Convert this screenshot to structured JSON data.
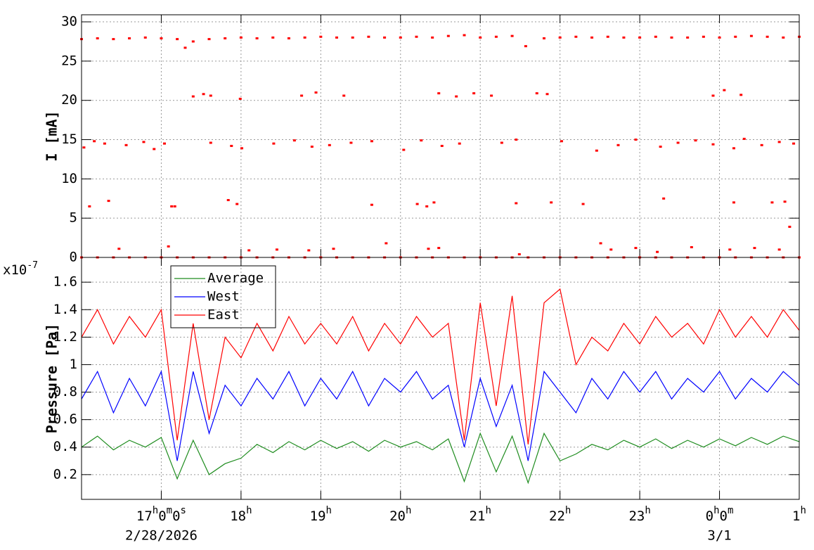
{
  "chart_data": [
    {
      "type": "scatter",
      "ylabel": "I [mA]",
      "color": "#ff0000",
      "ylim": [
        0,
        30.9
      ],
      "yticks": [
        0,
        5,
        10,
        15,
        20,
        25,
        30
      ],
      "grid": true,
      "series": [
        {
          "x": [
            16,
            16.2,
            16.4,
            16.6,
            16.8,
            17,
            17.2,
            17.4,
            17.6,
            17.8,
            18,
            18.2,
            18.4,
            18.6,
            18.8,
            19,
            19.2,
            19.4,
            19.6,
            19.8,
            20,
            20.2,
            20.4,
            20.6,
            20.8,
            21,
            21.2,
            21.4,
            21.8,
            22,
            22.2,
            22.4,
            22.6,
            22.8,
            23,
            23.2,
            23.4,
            23.6,
            23.8,
            24,
            24.2,
            24.4,
            24.6,
            24.8,
            25
          ],
          "values": [
            27.8,
            27.9,
            27.8,
            27.9,
            28.0,
            27.9,
            27.8,
            27.5,
            27.8,
            27.9,
            28.0,
            27.9,
            28.0,
            27.9,
            28.0,
            28.1,
            28.0,
            28.0,
            28.1,
            28.0,
            28.0,
            28.1,
            28.0,
            28.2,
            28.3,
            28.0,
            28.1,
            28.2,
            27.9,
            28.0,
            28.1,
            28.0,
            28.1,
            28.0,
            28.0,
            28.1,
            28.0,
            28.0,
            28.1,
            28.0,
            28.1,
            28.2,
            28.1,
            28.0,
            28.1
          ]
        },
        {
          "x": [
            16,
            16.2,
            16.4,
            16.6,
            16.8,
            17,
            17.2,
            17.4,
            17.6,
            17.8,
            18,
            18.2,
            18.4,
            18.6,
            18.8,
            19,
            19.2,
            19.4,
            19.6,
            19.8,
            20,
            20.2,
            20.4,
            20.6,
            20.8,
            21,
            21.2,
            21.4,
            21.6,
            21.8,
            22,
            22.2,
            22.4,
            22.6,
            22.8,
            23,
            23.2,
            23.4,
            23.6,
            23.8,
            24,
            24.2,
            24.4,
            24.6,
            24.8,
            25
          ],
          "values": [
            0,
            0,
            0,
            0,
            0,
            0,
            0,
            0,
            0,
            0,
            0,
            0,
            0,
            0,
            0,
            0,
            0,
            0,
            0,
            0,
            0,
            0,
            0,
            0,
            0,
            0,
            0,
            0,
            0,
            0,
            0,
            0,
            0,
            0,
            0,
            0,
            0,
            0,
            0,
            0,
            0,
            0,
            0,
            0,
            0,
            0
          ]
        },
        {
          "x": [
            16.03,
            16.16,
            16.29,
            16.56,
            16.78,
            16.91,
            17.04,
            17.62,
            17.88,
            18.01,
            18.41,
            18.67,
            18.89,
            19.11,
            19.38,
            19.64,
            20.04,
            20.26,
            20.52,
            20.74,
            21.27,
            21.45,
            22.02,
            22.46,
            22.73,
            22.95,
            23.26,
            23.48,
            23.7,
            23.92,
            24.18,
            24.31,
            24.53,
            24.75,
            24.93
          ],
          "values": [
            14,
            14.8,
            14.5,
            14.3,
            14.7,
            13.8,
            14.5,
            14.6,
            14.2,
            13.9,
            14.5,
            14.9,
            14.1,
            14.3,
            14.6,
            14.8,
            13.7,
            14.9,
            14.2,
            14.5,
            14.6,
            15.0,
            14.8,
            13.6,
            14.3,
            15.0,
            14.1,
            14.6,
            14.9,
            14.4,
            13.9,
            15.1,
            14.3,
            14.7,
            14.5
          ]
        },
        {
          "x": [
            17.4,
            17.53,
            17.62,
            17.99,
            18.76,
            18.94,
            19.29,
            20.48,
            20.7,
            20.92,
            21.14,
            21.71,
            21.84,
            23.92,
            24.06,
            24.27
          ],
          "values": [
            20.5,
            20.8,
            20.6,
            20.2,
            20.6,
            21.0,
            20.6,
            20.9,
            20.5,
            20.9,
            20.6,
            20.9,
            20.8,
            20.6,
            21.3,
            20.7
          ]
        },
        {
          "x": [
            16.1,
            16.34,
            17.13,
            17.17,
            17.84,
            17.95,
            19.64,
            20.21,
            20.33,
            20.42,
            21.45,
            21.89,
            22.29,
            23.3,
            24.18,
            24.66,
            24.82,
            24.88
          ],
          "values": [
            6.5,
            7.2,
            6.5,
            6.5,
            7.3,
            6.8,
            6.7,
            6.8,
            6.5,
            7.0,
            6.9,
            7.0,
            6.8,
            7.5,
            7.0,
            7.0,
            7.1,
            3.9
          ]
        },
        {
          "x": [
            16.47,
            17.09,
            18.1,
            18.45,
            18.85,
            19.16,
            19.82,
            20.35,
            20.48,
            21.49,
            22.51,
            22.64,
            22.95,
            23.22,
            23.65,
            24.13,
            24.44,
            24.75
          ],
          "values": [
            1.1,
            1.4,
            0.9,
            1.0,
            0.9,
            1.1,
            1.8,
            1.1,
            1.2,
            0.4,
            1.8,
            1.0,
            1.2,
            0.7,
            1.3,
            1.0,
            1.2,
            1.0
          ]
        },
        {
          "x": [
            17.3,
            21.57
          ],
          "values": [
            26.7,
            26.9
          ]
        }
      ]
    },
    {
      "type": "line",
      "ylabel": "Pressure [Pa]",
      "axis_multiplier": {
        "base": "x10",
        "exponent": "-7"
      },
      "ylim": [
        0.02,
        1.78
      ],
      "yticks": [
        0.2,
        0.4,
        0.6,
        0.8,
        1,
        1.2,
        1.4,
        1.6
      ],
      "grid": true,
      "legend": "upper left",
      "xlim": [
        16,
        25
      ],
      "xticks": [
        {
          "value": 17,
          "label": "17h0m0s"
        },
        {
          "value": 18,
          "label": "18h"
        },
        {
          "value": 19,
          "label": "19h"
        },
        {
          "value": 20,
          "label": "20h"
        },
        {
          "value": 21,
          "label": "21h"
        },
        {
          "value": 22,
          "label": "22h"
        },
        {
          "value": 23,
          "label": "23h"
        },
        {
          "value": 24,
          "label": "0h0m"
        },
        {
          "value": 25,
          "label": "1h"
        }
      ],
      "date_labels": [
        {
          "value": 17,
          "label": "2/28/2026"
        },
        {
          "value": 24,
          "label": "3/1"
        }
      ],
      "x": [
        16,
        16.2,
        16.4,
        16.6,
        16.8,
        17,
        17.2,
        17.4,
        17.6,
        17.8,
        18,
        18.2,
        18.4,
        18.6,
        18.8,
        19,
        19.2,
        19.4,
        19.6,
        19.8,
        20,
        20.2,
        20.4,
        20.6,
        20.8,
        21,
        21.2,
        21.4,
        21.6,
        21.8,
        22,
        22.2,
        22.4,
        22.6,
        22.8,
        23,
        23.2,
        23.4,
        23.6,
        23.8,
        24,
        24.2,
        24.4,
        24.6,
        24.8,
        25
      ],
      "series": [
        {
          "name": "Average",
          "color": "#1e8c1e",
          "values": [
            0.4,
            0.48,
            0.38,
            0.45,
            0.4,
            0.47,
            0.17,
            0.45,
            0.2,
            0.28,
            0.32,
            0.42,
            0.36,
            0.44,
            0.38,
            0.45,
            0.39,
            0.44,
            0.37,
            0.45,
            0.4,
            0.44,
            0.38,
            0.46,
            0.15,
            0.5,
            0.22,
            0.48,
            0.14,
            0.5,
            0.3,
            0.35,
            0.42,
            0.38,
            0.45,
            0.4,
            0.46,
            0.39,
            0.45,
            0.4,
            0.46,
            0.41,
            0.47,
            0.42,
            0.48,
            0.44
          ]
        },
        {
          "name": "West",
          "color": "#0000ff",
          "values": [
            0.75,
            0.95,
            0.65,
            0.9,
            0.7,
            0.95,
            0.3,
            0.95,
            0.5,
            0.85,
            0.7,
            0.9,
            0.75,
            0.95,
            0.7,
            0.9,
            0.75,
            0.95,
            0.7,
            0.9,
            0.8,
            0.95,
            0.75,
            0.85,
            0.4,
            0.9,
            0.55,
            0.85,
            0.3,
            0.95,
            0.8,
            0.65,
            0.9,
            0.75,
            0.95,
            0.8,
            0.95,
            0.75,
            0.9,
            0.8,
            0.95,
            0.75,
            0.9,
            0.8,
            0.95,
            0.85
          ]
        },
        {
          "name": "East",
          "color": "#ff0000",
          "values": [
            1.2,
            1.4,
            1.15,
            1.35,
            1.2,
            1.4,
            0.45,
            1.3,
            0.6,
            1.2,
            1.05,
            1.3,
            1.1,
            1.35,
            1.15,
            1.3,
            1.15,
            1.35,
            1.1,
            1.3,
            1.15,
            1.35,
            1.2,
            1.3,
            0.45,
            1.45,
            0.7,
            1.5,
            0.42,
            1.45,
            1.55,
            1.0,
            1.2,
            1.1,
            1.3,
            1.15,
            1.35,
            1.2,
            1.3,
            1.15,
            1.4,
            1.2,
            1.35,
            1.2,
            1.4,
            1.25
          ]
        }
      ]
    }
  ]
}
